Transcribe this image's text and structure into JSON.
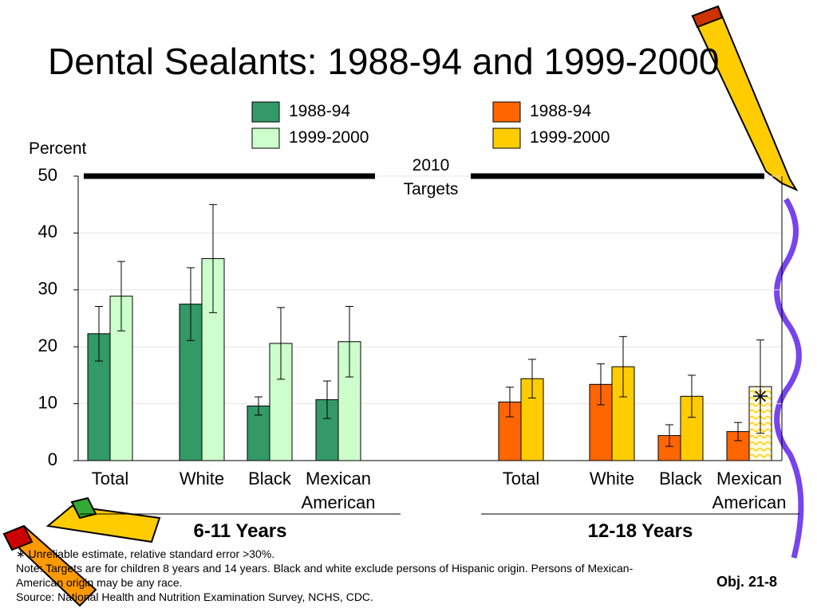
{
  "title": "Dental Sealants: 1988-94 and 1999-2000",
  "chart_data": {
    "type": "bar",
    "ylabel": "Percent",
    "ylim": [
      0,
      50
    ],
    "yticks": [
      0,
      10,
      20,
      30,
      40,
      50
    ],
    "grid": true,
    "target_label": "2010 Targets",
    "groups": [
      {
        "label": "6-11 Years",
        "target": 50,
        "categories": [
          "Total",
          "White",
          "Black",
          "Mexican American"
        ],
        "series": [
          {
            "name": "1988-94",
            "color": "#339966",
            "values": [
              22.3,
              27.5,
              9.6,
              10.7
            ],
            "errors": [
              4.8,
              6.4,
              1.6,
              3.3
            ],
            "unreliable": [
              false,
              false,
              false,
              false
            ]
          },
          {
            "name": "1999-2000",
            "color": "#ccffcc",
            "values": [
              28.9,
              35.5,
              20.6,
              20.9
            ],
            "errors": [
              6.1,
              9.5,
              6.3,
              6.2
            ],
            "unreliable": [
              false,
              false,
              false,
              false
            ]
          }
        ]
      },
      {
        "label": "12-18 Years",
        "target": 50,
        "categories": [
          "Total",
          "White",
          "Black",
          "Mexican American"
        ],
        "series": [
          {
            "name": "1988-94",
            "color": "#ff6600",
            "values": [
              10.3,
              13.4,
              4.4,
              5.1
            ],
            "errors": [
              2.6,
              3.6,
              1.9,
              1.6
            ],
            "unreliable": [
              false,
              false,
              false,
              false
            ]
          },
          {
            "name": "1999-2000",
            "color": "#ffcc00",
            "values": [
              14.4,
              16.5,
              11.3,
              13.0
            ],
            "errors": [
              3.4,
              5.3,
              3.7,
              8.2
            ],
            "unreliable": [
              false,
              false,
              false,
              true
            ]
          }
        ]
      }
    ]
  },
  "footnotes": [
    "∗ Unreliable estimate, relative standard error >30%.",
    "Note:  Targets are for children 8 years and 14 years.  Black and white exclude persons of Hispanic origin. Persons of Mexican-American origin may be any race.",
    "Source: National Health and Nutrition Examination Survey, NCHS, CDC."
  ],
  "objective": "Obj. 21-8"
}
